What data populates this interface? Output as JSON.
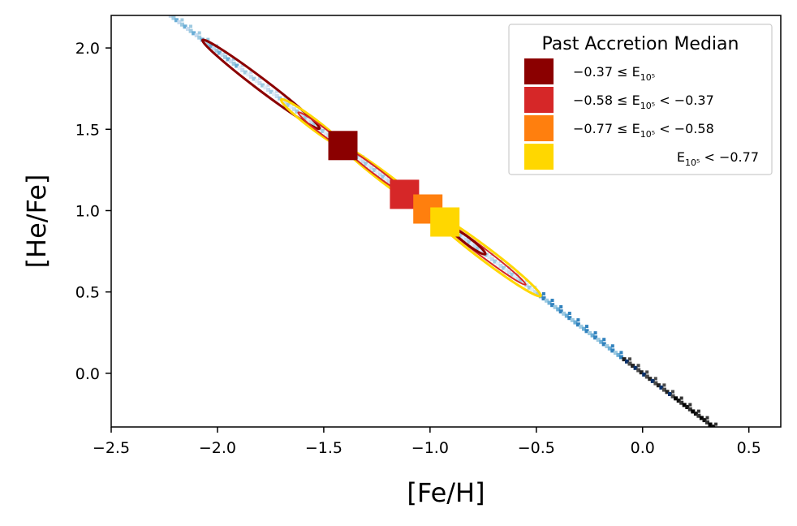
{
  "chart_data": {
    "type": "scatter",
    "xlabel": "[Fe/H]",
    "ylabel": "[He/Fe]",
    "xlim": [
      -2.5,
      0.65
    ],
    "ylim": [
      -0.33,
      2.2
    ],
    "xticks": [
      -2.5,
      -2.0,
      -1.5,
      -1.0,
      -0.5,
      0.0,
      0.5
    ],
    "xtick_labels": [
      "−2.5",
      "−2.0",
      "−1.5",
      "−1.0",
      "−0.5",
      "0.0",
      "0.5"
    ],
    "yticks": [
      0.0,
      0.5,
      1.0,
      1.5,
      2.0
    ],
    "ytick_labels": [
      "0.0",
      "0.5",
      "1.0",
      "1.5",
      "2.0"
    ],
    "grid": false,
    "legend": {
      "title": "Past Accretion Median",
      "placement": "top-right",
      "entries": [
        {
          "label": "−0.37 ≤ E",
          "sub": "10⁵",
          "tail": "",
          "color": "#8b0000"
        },
        {
          "label": "−0.58 ≤ E",
          "sub": "10⁵",
          "tail": " < −0.37",
          "color": "#d62728"
        },
        {
          "label": "−0.77 ≤ E",
          "sub": "10⁵",
          "tail": " < −0.58",
          "color": "#ff7f0e"
        },
        {
          "label": "E",
          "sub": "10⁵",
          "tail": " < −0.77",
          "color": "#ffd700"
        }
      ]
    },
    "series": [
      {
        "name": "−0.37 ≤ E10⁵",
        "x": [
          -1.41
        ],
        "y": [
          1.4
        ],
        "color": "#8b0000"
      },
      {
        "name": "−0.58 ≤ E10⁵ < −0.37",
        "x": [
          -1.12
        ],
        "y": [
          1.1
        ],
        "color": "#d62728"
      },
      {
        "name": "−0.77 ≤ E10⁵ < −0.58",
        "x": [
          -1.01
        ],
        "y": [
          1.01
        ],
        "color": "#ff7f0e"
      },
      {
        "name": "E10⁵ < −0.77",
        "x": [
          -0.93
        ],
        "y": [
          0.93
        ],
        "color": "#ffd700"
      }
    ],
    "density_trend": {
      "x_from": -2.22,
      "x_to": 0.43,
      "slope": -0.99,
      "intercept": 0.0
    }
  }
}
